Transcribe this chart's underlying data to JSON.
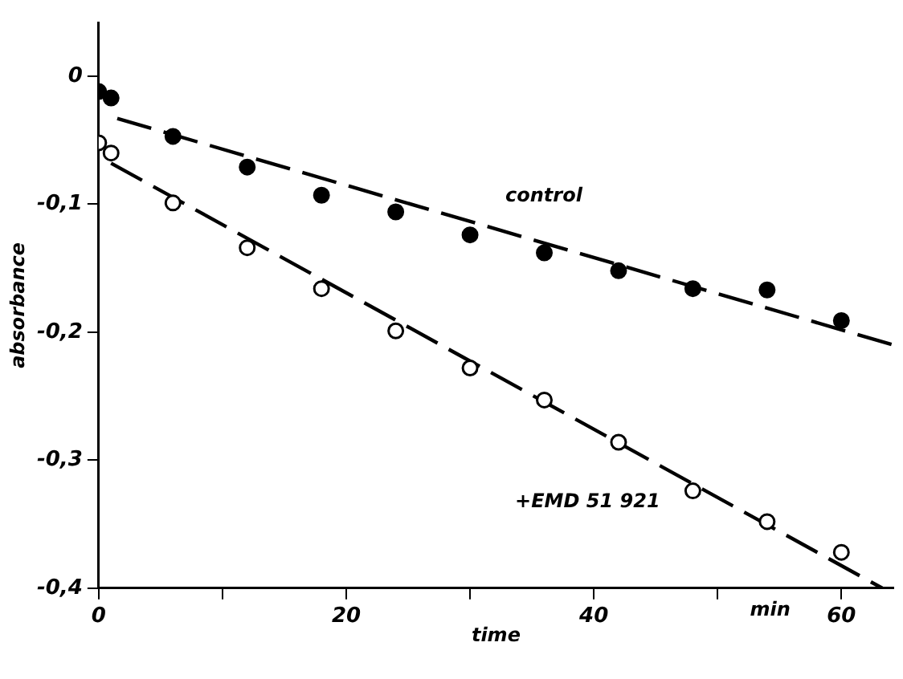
{
  "chart_data": {
    "type": "scatter",
    "xlabel": "time",
    "ylabel": "absorbance",
    "annotations": [
      "min"
    ],
    "xlim": [
      0,
      64.2
    ],
    "ylim": [
      -0.4,
      0.042
    ],
    "xticks": [
      0,
      {
        "value": 10,
        "label": null
      },
      20,
      {
        "value": 30,
        "label": null
      },
      40,
      {
        "value": 50,
        "label": null
      },
      60
    ],
    "yticks": [
      {
        "value": -0.4,
        "label": "-0,4"
      },
      {
        "value": -0.3,
        "label": "-0,3"
      },
      {
        "value": -0.2,
        "label": "-0,2"
      },
      {
        "value": -0.1,
        "label": "-0,1"
      },
      0
    ],
    "grid": false,
    "legend": false,
    "series": [
      {
        "name": "control",
        "marker": "circle",
        "color": "#000000",
        "x": [
          0,
          1,
          6,
          12,
          18,
          24,
          30,
          36,
          42,
          48,
          54,
          60
        ],
        "values": [
          -0.012,
          -0.017,
          -0.047,
          -0.071,
          -0.093,
          -0.106,
          -0.124,
          -0.138,
          -0.152,
          -0.166,
          -0.167,
          -0.191
        ]
      },
      {
        "name": "+EMD 51 921",
        "marker": "circle",
        "color": "#000000",
        "x": [
          0,
          1,
          6,
          12,
          18,
          24,
          30,
          36,
          42,
          48,
          54,
          60
        ],
        "values": [
          -0.052,
          -0.06,
          -0.099,
          -0.134,
          -0.166,
          -0.199,
          -0.228,
          -0.253,
          -0.286,
          -0.324,
          -0.348,
          -0.372
        ]
      },
      {
        "type": "line",
        "marker": "none",
        "line_style": "dashed",
        "color": "#000000",
        "x": [
          1.5,
          64.2
        ],
        "values": [
          -0.033,
          -0.21
        ]
      },
      {
        "type": "line",
        "marker": "none",
        "line_style": "dashed",
        "color": "#000000",
        "x": [
          1,
          63.3
        ],
        "values": [
          -0.068,
          -0.4
        ]
      }
    ]
  }
}
